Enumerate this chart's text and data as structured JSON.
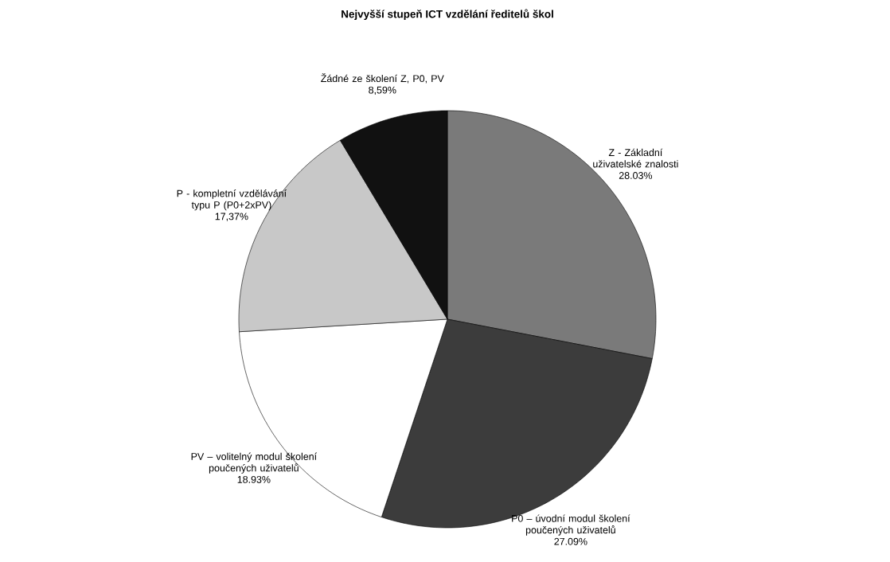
{
  "chart_data": {
    "type": "pie",
    "title": "Nejvyšší stupeň ICT vzdělání ředitelů škol",
    "categories": [
      "Z - Základní uživatelské znalosti",
      "P0 – úvodní modul školení poučených uživatelů",
      "PV – volitelný modul školení poučených uživatelů",
      "P - kompletní vzdělávání typu P (P0+2xPV)",
      "Žádné ze školení Z, P0, PV"
    ],
    "values": [
      28.03,
      27.09,
      18.93,
      17.37,
      8.59
    ],
    "value_labels": [
      "28.03%",
      "27.09%",
      "18.93%",
      "17,37%",
      "8,59%"
    ],
    "colors": [
      "#7a7a7a",
      "#3c3c3c",
      "#ffffff",
      "#c8c8c8",
      "#111111"
    ]
  }
}
